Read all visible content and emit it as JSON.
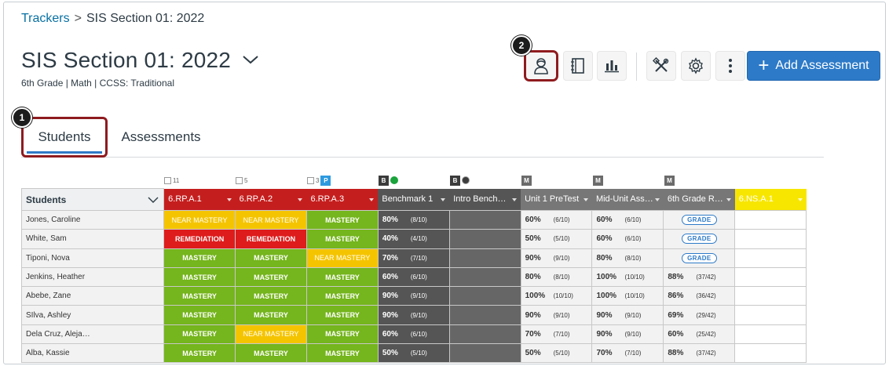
{
  "breadcrumb": {
    "root": "Trackers",
    "separator": ">",
    "current": "SIS Section 01: 2022"
  },
  "header": {
    "title": "SIS Section 01: 2022",
    "subtitle": "6th Grade | Math | CCSS: Traditional"
  },
  "toolbar": {
    "buttons": [
      "student-view-icon",
      "notebook-icon",
      "bar-chart-icon",
      "tools-icon",
      "gear-icon",
      "more-icon"
    ],
    "add_label": "Add Assessment",
    "add_icon": "+"
  },
  "callouts": {
    "one": "1",
    "two": "2"
  },
  "tabs": {
    "students": "Students",
    "assessments": "Assessments"
  },
  "colors": {
    "near_mastery": "#f5c400",
    "mastery": "#75b51d",
    "remediation": "#de1c1c",
    "accent": "#2d7ac8",
    "highlight": "#8e1b1f"
  },
  "columns": {
    "students": "Students",
    "c1": {
      "label": "6.RP.A.1",
      "badge_count": "11"
    },
    "c2": {
      "label": "6.RP.A.2",
      "badge_count": "5"
    },
    "c3": {
      "label": "6.RP.A.3",
      "badge_count": "3",
      "badge_letter": "P"
    },
    "c4": {
      "label": "Benchmark 1",
      "badge_letter": "B"
    },
    "c5": {
      "label": "Intro Bench…",
      "badge_letter": "B"
    },
    "c6": {
      "label": "Unit 1 PreTest",
      "badge_letter": "M"
    },
    "c7": {
      "label": "Mid-Unit Ass…",
      "badge_letter": "M"
    },
    "c8": {
      "label": "6th Grade R…",
      "badge_letter": "M"
    },
    "c9": {
      "label": "6.NS.A.1"
    }
  },
  "rows": [
    {
      "name": "Jones, Caroline",
      "s1": "NEAR MASTERY",
      "s2": "NEAR MASTERY",
      "s3": "MASTERY",
      "b1p": "80%",
      "b1f": "(8/10)",
      "u1p": "60%",
      "u1f": "(6/10)",
      "m1p": "60%",
      "m1f": "(6/10)",
      "g": "GRADE"
    },
    {
      "name": "White, Sam",
      "s1": "REMEDIATION",
      "s2": "REMEDIATION",
      "s3": "MASTERY",
      "b1p": "40%",
      "b1f": "(4/10)",
      "u1p": "50%",
      "u1f": "(5/10)",
      "m1p": "60%",
      "m1f": "(6/10)",
      "g": "GRADE"
    },
    {
      "name": "Tiponi, Nova",
      "s1": "MASTERY",
      "s2": "MASTERY",
      "s3": "NEAR MASTERY",
      "b1p": "70%",
      "b1f": "(7/10)",
      "u1p": "90%",
      "u1f": "(9/10)",
      "m1p": "80%",
      "m1f": "(8/10)",
      "g": "GRADE"
    },
    {
      "name": "Jenkins, Heather",
      "s1": "MASTERY",
      "s2": "MASTERY",
      "s3": "MASTERY",
      "b1p": "60%",
      "b1f": "(6/10)",
      "u1p": "80%",
      "u1f": "(8/10)",
      "m1p": "100%",
      "m1f": "(10/10)",
      "gp": "88%",
      "gf": "(37/42)"
    },
    {
      "name": "Abebe, Zane",
      "s1": "MASTERY",
      "s2": "MASTERY",
      "s3": "MASTERY",
      "b1p": "90%",
      "b1f": "(9/10)",
      "u1p": "100%",
      "u1f": "(10/10)",
      "m1p": "100%",
      "m1f": "(10/10)",
      "gp": "86%",
      "gf": "(36/42)"
    },
    {
      "name": "SIlva, Ashley",
      "s1": "MASTERY",
      "s2": "MASTERY",
      "s3": "MASTERY",
      "b1p": "90%",
      "b1f": "(9/10)",
      "u1p": "90%",
      "u1f": "(9/10)",
      "m1p": "90%",
      "m1f": "(9/10)",
      "gp": "69%",
      "gf": "(29/42)"
    },
    {
      "name": "Dela Cruz, Aleja…",
      "s1": "MASTERY",
      "s2": "NEAR MASTERY",
      "s3": "MASTERY",
      "b1p": "60%",
      "b1f": "(6/10)",
      "u1p": "70%",
      "u1f": "(7/10)",
      "m1p": "90%",
      "m1f": "(9/10)",
      "gp": "60%",
      "gf": "(25/42)"
    },
    {
      "name": "Alba, Kassie",
      "s1": "MASTERY",
      "s2": "MASTERY",
      "s3": "MASTERY",
      "b1p": "50%",
      "b1f": "(5/10)",
      "u1p": "50%",
      "u1f": "(5/10)",
      "m1p": "70%",
      "m1f": "(7/10)",
      "gp": "88%",
      "gf": "(37/42)"
    }
  ]
}
